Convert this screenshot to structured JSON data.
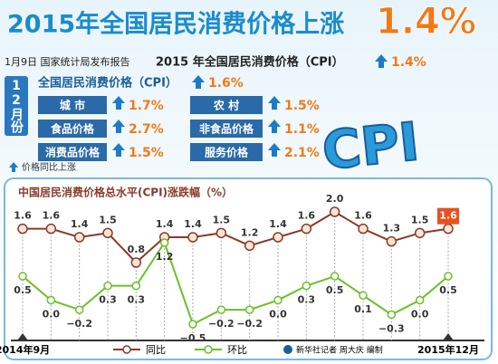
{
  "header": {
    "title": "2015年全国居民消费价格上涨",
    "title_value": "1.4%",
    "subtitle": "1月9日 国家统计局发布报告",
    "subtitle_main": "2015 年全国居民消费价格（CPI）",
    "subtitle_value": "1.4%"
  },
  "month_panel": {
    "month": "12月份",
    "cpi_label": "全国居民消费价格（CPI）",
    "cpi_value": "1.6%",
    "items": [
      {
        "label": "城 市",
        "value": "1.7%"
      },
      {
        "label": "农 村",
        "value": "1.5%"
      },
      {
        "label": "食品价格",
        "value": "2.7%"
      },
      {
        "label": "非食品价格",
        "value": "1.1%"
      },
      {
        "label": "消费品价格",
        "value": "1.5%"
      },
      {
        "label": "服务价格",
        "value": "2.1%"
      }
    ],
    "note": "价格同比上涨",
    "logo": "CPI"
  },
  "chart_data": {
    "type": "line",
    "title": "中国居民消费价格总水平(CPI)涨跌幅（%）",
    "categories": [
      "2014年9月",
      null,
      null,
      null,
      null,
      null,
      null,
      null,
      null,
      null,
      null,
      null,
      null,
      null,
      null,
      "2015年12月"
    ],
    "series": [
      {
        "name": "同比",
        "color": "#8a3a2a",
        "values": [
          1.6,
          1.6,
          1.4,
          1.5,
          0.8,
          1.4,
          1.4,
          1.5,
          1.2,
          1.4,
          1.6,
          2.0,
          1.6,
          1.3,
          1.5,
          1.6
        ],
        "value_labels": [
          "1.6",
          "1.6",
          "1.4",
          "1.5",
          "0.8",
          "1.4",
          "1.4",
          "1.5",
          "1.2",
          "1.4",
          "1.6",
          "2.0",
          "1.6",
          "1.3",
          "1.5",
          "1.6"
        ]
      },
      {
        "name": "环比",
        "color": "#6cbf2a",
        "values": [
          0.5,
          0.0,
          -0.2,
          0.3,
          0.3,
          1.2,
          -0.5,
          -0.2,
          -0.2,
          0.0,
          0.3,
          0.5,
          0.1,
          -0.3,
          0.0,
          0.5
        ],
        "value_labels": [
          "0.5",
          "0.0",
          "−0.2",
          "0.3",
          "0.3",
          "1.2",
          "−0.5",
          "−0.2",
          "−0.2",
          "0.0",
          "0.3",
          "0.5",
          "0.1",
          "−0.3",
          "0.0",
          "0.5"
        ]
      }
    ],
    "credit": "新华社记者 周大庆 编制"
  }
}
